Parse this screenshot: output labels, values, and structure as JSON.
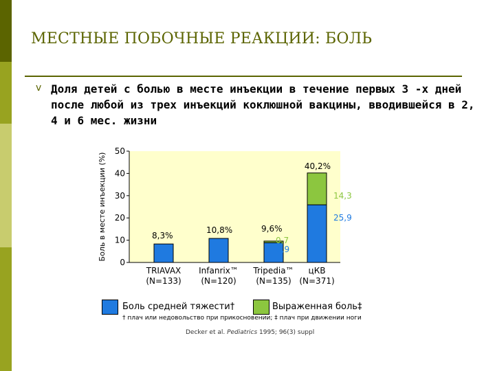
{
  "header": {
    "title": "МЕСТНЫЕ ПОБОЧНЫЕ РЕАКЦИИ: БОЛЬ",
    "bullet": "v",
    "subtitle": "Доля детей с болью в месте инъекции в течение первых 3 -х дней после любой из трех инъекций коклюшной вакцины, вводившейся в  2, 4 и 6 мес. жизни"
  },
  "colors": {
    "accent": "#5b6400",
    "plot_bg": "#ffffcc",
    "moderate": "#1f7ae0",
    "severe": "#8cc63f",
    "moderate_label": "#1f7ae0",
    "severe_label": "#8cc63f"
  },
  "chart_data": {
    "type": "bar",
    "stacked": true,
    "ylabel": "Боль в месте инъекции (%)",
    "ylim": [
      0,
      50
    ],
    "yticks": [
      "0",
      "10",
      "20",
      "30",
      "40",
      "50"
    ],
    "grid": false,
    "categories": [
      {
        "name": "TRIAVAX",
        "n": "(N=133)"
      },
      {
        "name": "Infanrix™",
        "n": "(N=120)"
      },
      {
        "name": "Tripedia™",
        "n": "(N=135)"
      },
      {
        "name": "цКВ",
        "n": "(N=371)"
      }
    ],
    "series": [
      {
        "name": "Боль средней тяжести†",
        "values": [
          8.3,
          10.8,
          8.9,
          25.9
        ]
      },
      {
        "name": "Выраженная боль‡",
        "values": [
          0,
          0,
          0.7,
          14.3
        ]
      }
    ],
    "total_labels": [
      "8,3%",
      "10,8%",
      "9,6%",
      "40,2%"
    ],
    "segment_labels": {
      "moderate": [
        "",
        "",
        "8,9",
        "25,9"
      ],
      "severe": [
        "",
        "",
        "0,7",
        "14,3"
      ]
    }
  },
  "legend": {
    "moderate_label": "Боль средней тяжести†",
    "severe_label": "Выраженная боль‡",
    "footnote": "† плач или недовольство при прикосновении; ‡ плач при движении ноги"
  },
  "source": {
    "author": "Decker et al.",
    "journal": "Pediatrics",
    "ref": "1995; 96(3) suppl"
  }
}
